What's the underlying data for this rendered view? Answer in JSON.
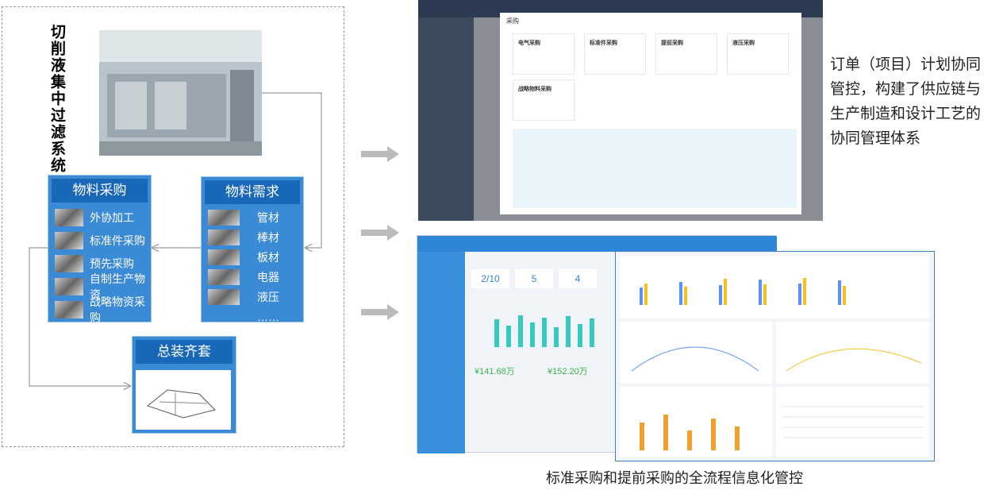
{
  "left": {
    "title": "切削液集中过滤系统",
    "purchase": {
      "title": "物料采购",
      "items": [
        "外协加工",
        "标准件采购",
        "预先采购",
        "自制生产物资",
        "战略物资采购"
      ]
    },
    "demand": {
      "title": "物料需求",
      "items": [
        "管材",
        "棒材",
        "板材",
        "电器",
        "液压",
        "……"
      ]
    },
    "assembly": {
      "title": "总装齐套"
    }
  },
  "right": {
    "caption_top": "订单（项目）计划协同管控，构建了供应链与生产制造和设计工艺的协同管理体系",
    "caption_bottom": "标准采购和提前采购的全流程信息化管控",
    "screen1": {
      "modal_title": "采购",
      "cards": [
        "电气采购",
        "标准件采购",
        "提前采购",
        "液压采购",
        "战略物料采购"
      ]
    },
    "screen2": {
      "kpis": [
        "2/10",
        "5",
        "4"
      ],
      "amounts": [
        "¥141.68万",
        "¥152.20万"
      ]
    }
  }
}
